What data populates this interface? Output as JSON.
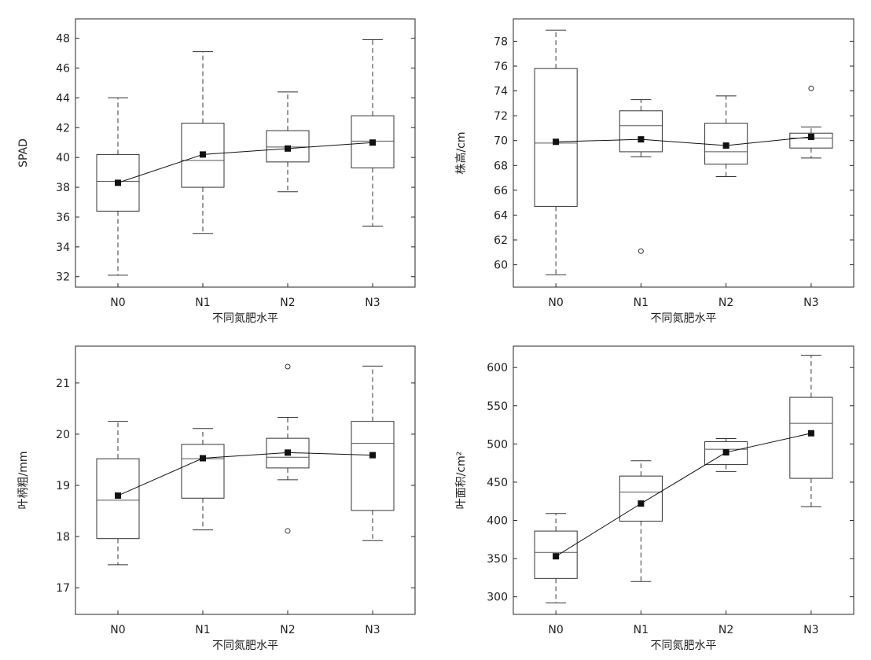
{
  "chart_data": [
    {
      "type": "box",
      "xlabel": "不同氮肥水平",
      "ylabel": "SPAD",
      "categories": [
        "N0",
        "N1",
        "N2",
        "N3"
      ],
      "ylim": [
        31.3,
        49.3
      ],
      "yticks": [
        32,
        34,
        36,
        38,
        40,
        42,
        44,
        46,
        48
      ],
      "boxes": [
        {
          "whisker_low": 32.1,
          "q1": 36.4,
          "median": 38.4,
          "q3": 40.2,
          "whisker_high": 44.0,
          "mean": 38.3,
          "outliers": []
        },
        {
          "whisker_low": 34.9,
          "q1": 38.0,
          "median": 39.8,
          "q3": 42.3,
          "whisker_high": 47.1,
          "mean": 40.2,
          "outliers": []
        },
        {
          "whisker_low": 37.7,
          "q1": 39.7,
          "median": 40.7,
          "q3": 41.8,
          "whisker_high": 44.4,
          "mean": 40.6,
          "outliers": []
        },
        {
          "whisker_low": 35.4,
          "q1": 39.3,
          "median": 41.1,
          "q3": 42.8,
          "whisker_high": 47.9,
          "mean": 41.0,
          "outliers": []
        }
      ],
      "mean_line": [
        38.3,
        40.2,
        40.6,
        41.0
      ]
    },
    {
      "type": "box",
      "xlabel": "不同氮肥水平",
      "ylabel": "株高/cm",
      "categories": [
        "N0",
        "N1",
        "N2",
        "N3"
      ],
      "ylim": [
        58.2,
        79.8
      ],
      "yticks": [
        60,
        62,
        64,
        66,
        68,
        70,
        72,
        74,
        76,
        78
      ],
      "boxes": [
        {
          "whisker_low": 59.2,
          "q1": 64.7,
          "median": 69.8,
          "q3": 75.8,
          "whisker_high": 78.9,
          "mean": 69.9,
          "outliers": []
        },
        {
          "whisker_low": 68.7,
          "q1": 69.1,
          "median": 71.2,
          "q3": 72.4,
          "whisker_high": 73.3,
          "mean": 70.1,
          "outliers": [
            61.1
          ]
        },
        {
          "whisker_low": 67.1,
          "q1": 68.1,
          "median": 69.1,
          "q3": 71.4,
          "whisker_high": 73.6,
          "mean": 69.6,
          "outliers": []
        },
        {
          "whisker_low": 68.6,
          "q1": 69.4,
          "median": 70.2,
          "q3": 70.6,
          "whisker_high": 71.1,
          "mean": 70.3,
          "outliers": [
            74.2
          ]
        }
      ],
      "mean_line": [
        69.9,
        70.1,
        69.6,
        70.3
      ]
    },
    {
      "type": "box",
      "xlabel": "不同氮肥水平",
      "ylabel": "叶柄粗/mm",
      "categories": [
        "N0",
        "N1",
        "N2",
        "N3"
      ],
      "ylim": [
        16.48,
        21.72
      ],
      "yticks": [
        17,
        18,
        19,
        20,
        21
      ],
      "boxes": [
        {
          "whisker_low": 17.45,
          "q1": 17.96,
          "median": 18.71,
          "q3": 19.52,
          "whisker_high": 20.25,
          "mean": 18.8,
          "outliers": []
        },
        {
          "whisker_low": 18.13,
          "q1": 18.75,
          "median": 19.52,
          "q3": 19.8,
          "whisker_high": 20.11,
          "mean": 19.53,
          "outliers": []
        },
        {
          "whisker_low": 19.11,
          "q1": 19.34,
          "median": 19.55,
          "q3": 19.92,
          "whisker_high": 20.33,
          "mean": 19.64,
          "outliers": [
            21.32,
            18.11
          ]
        },
        {
          "whisker_low": 17.92,
          "q1": 18.51,
          "median": 19.82,
          "q3": 20.25,
          "whisker_high": 21.33,
          "mean": 19.59,
          "outliers": []
        }
      ],
      "mean_line": [
        18.8,
        19.53,
        19.64,
        19.59
      ]
    },
    {
      "type": "box",
      "xlabel": "不同氮肥水平",
      "ylabel": "叶面积/cm²",
      "categories": [
        "N0",
        "N1",
        "N2",
        "N3"
      ],
      "ylim": [
        277,
        628
      ],
      "yticks": [
        300,
        350,
        400,
        450,
        500,
        550,
        600
      ],
      "boxes": [
        {
          "whisker_low": 292,
          "q1": 324,
          "median": 358,
          "q3": 386,
          "whisker_high": 409,
          "mean": 353,
          "outliers": []
        },
        {
          "whisker_low": 320,
          "q1": 399,
          "median": 437,
          "q3": 458,
          "whisker_high": 478,
          "mean": 422,
          "outliers": []
        },
        {
          "whisker_low": 464,
          "q1": 473,
          "median": 493,
          "q3": 503,
          "whisker_high": 507,
          "mean": 489,
          "outliers": []
        },
        {
          "whisker_low": 418,
          "q1": 455,
          "median": 527,
          "q3": 561,
          "whisker_high": 616,
          "mean": 514,
          "outliers": []
        }
      ],
      "mean_line": [
        353,
        422,
        489,
        514
      ]
    }
  ]
}
